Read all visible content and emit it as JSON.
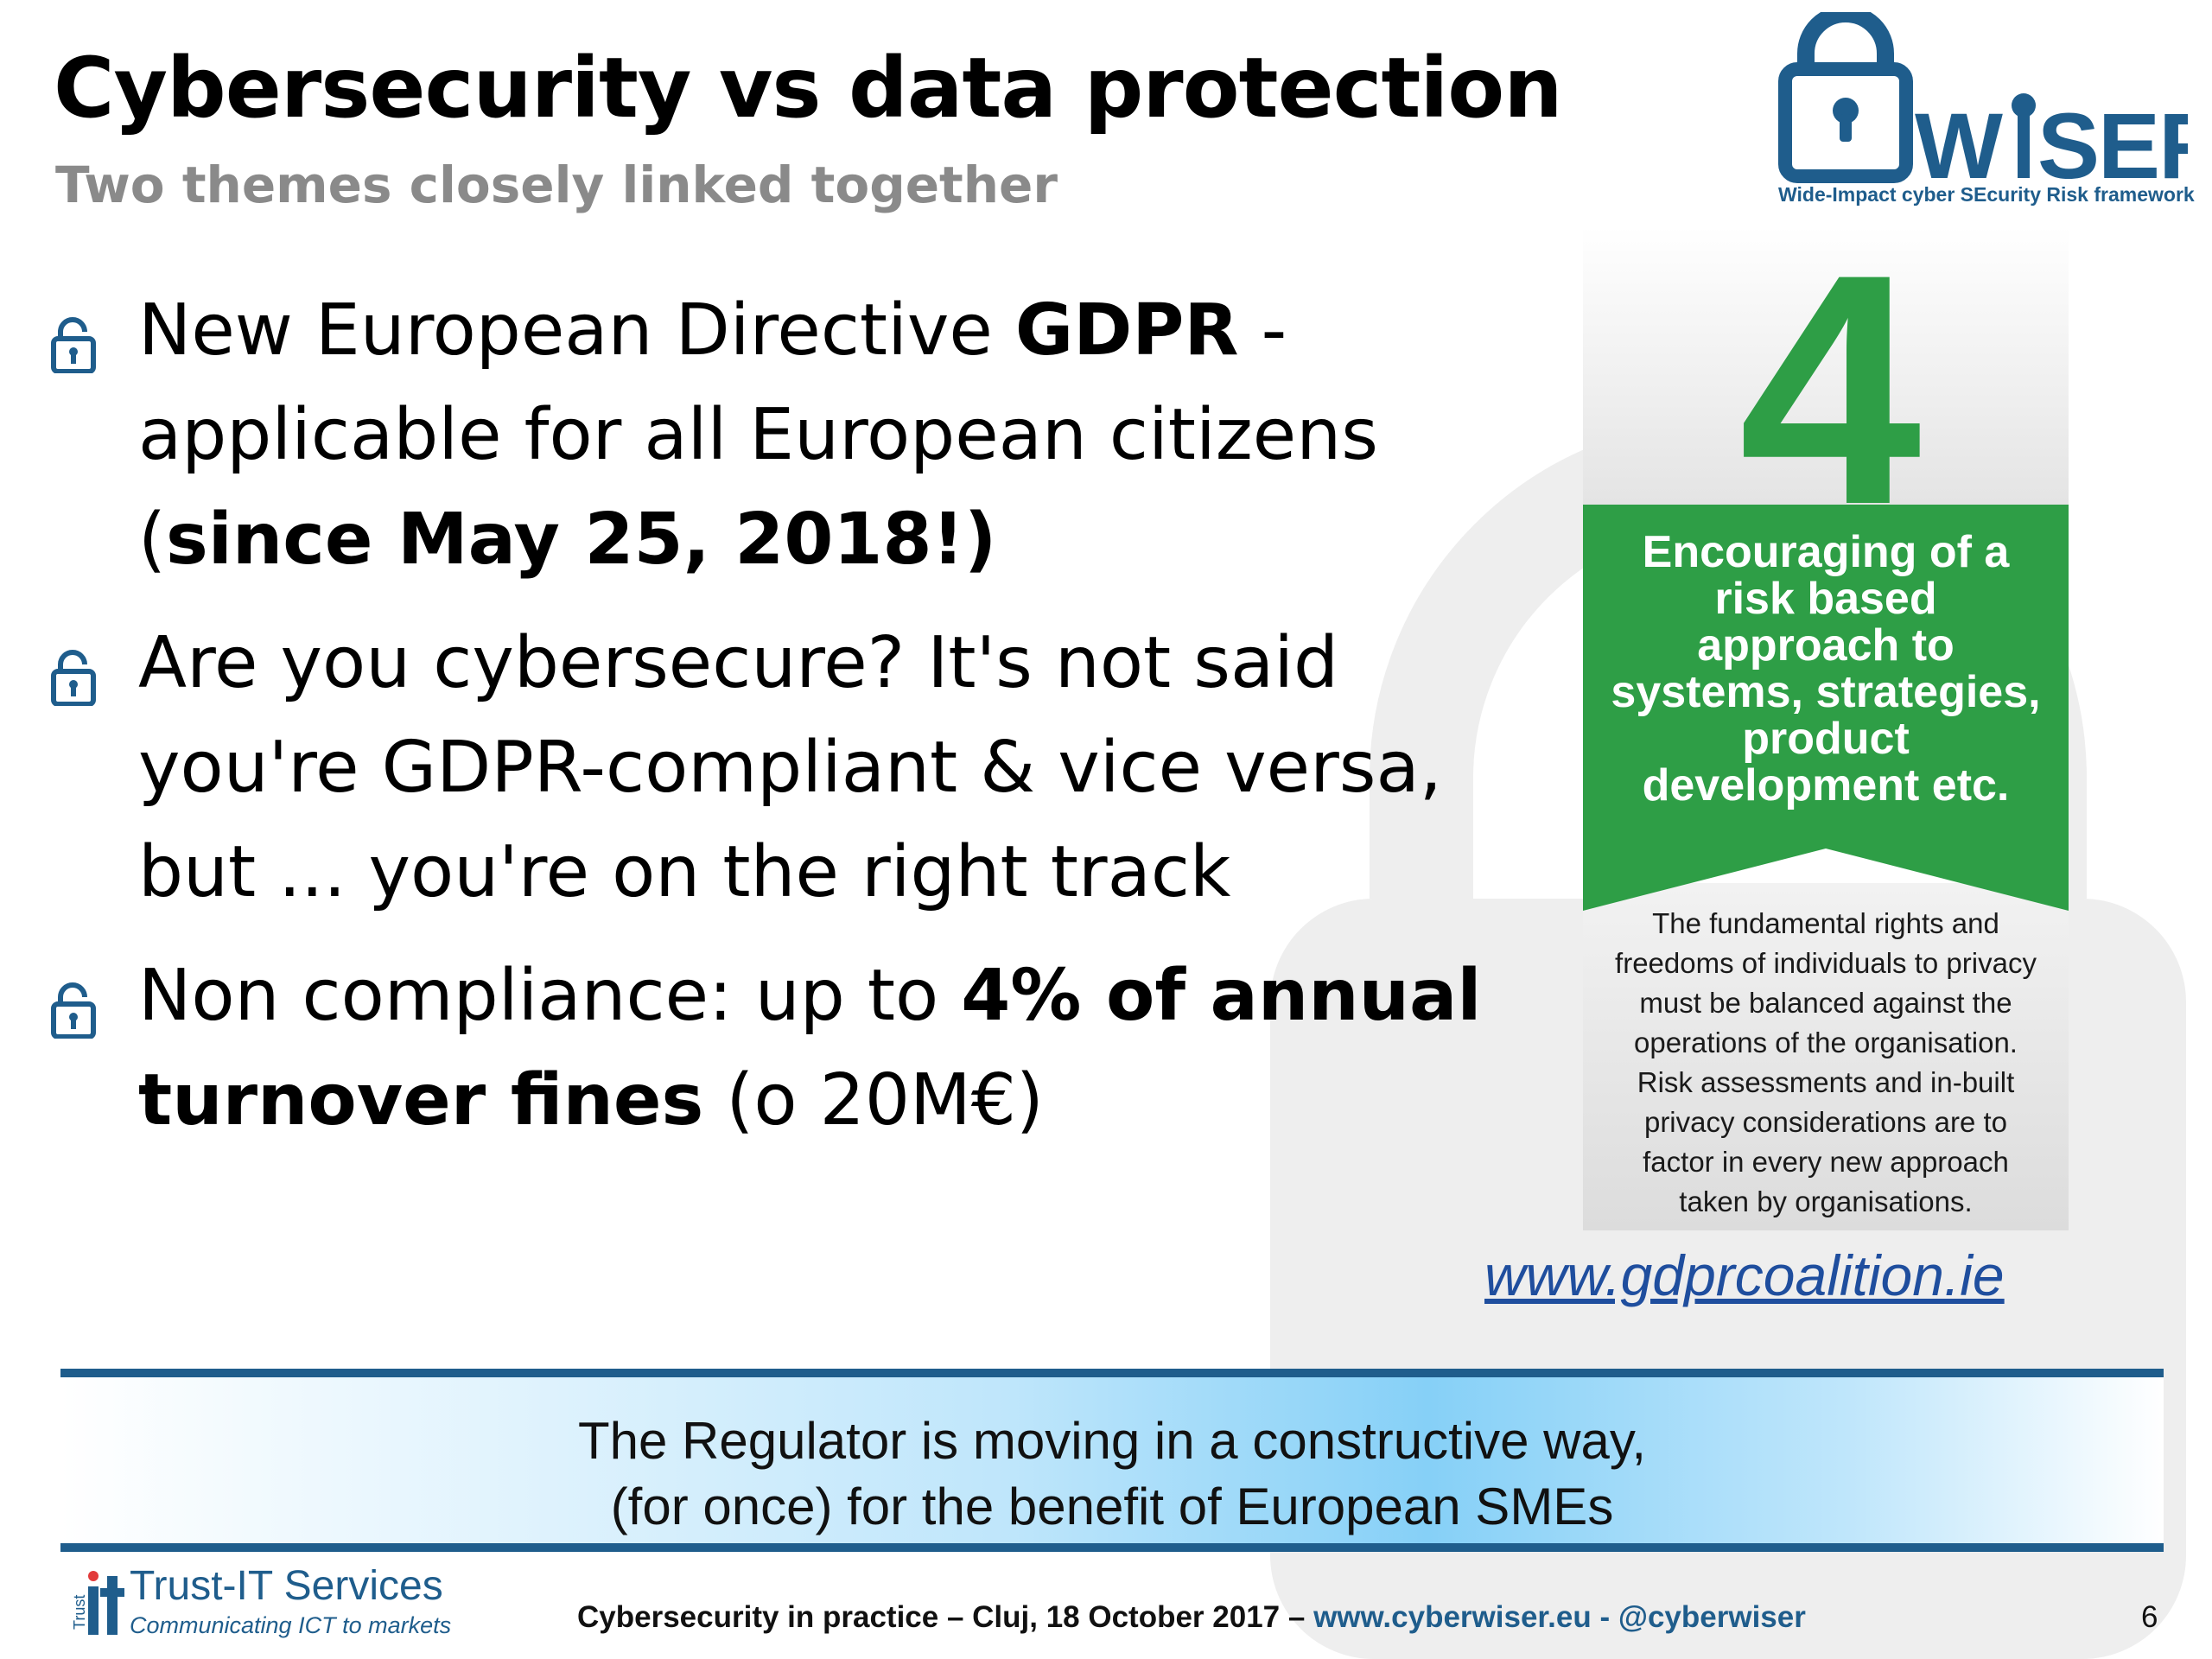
{
  "title": "Cybersecurity vs data protection",
  "subtitle": "Two themes closely linked together",
  "logo": {
    "wordmark": "WiSER",
    "tagline": "Wide-Impact cyber SEcurity Risk framework",
    "color": "#1f5d8c"
  },
  "bullets": [
    {
      "icon": "padlock-icon",
      "lines": [
        [
          {
            "text": "New European Directive "
          },
          {
            "text": "GDPR",
            "bold": true
          },
          {
            "text": " -"
          }
        ],
        [
          {
            "text": "applicable for all European citizens"
          }
        ],
        [
          {
            "text": "("
          },
          {
            "text": "since May 25, 2018!)",
            "bold": true
          }
        ]
      ]
    },
    {
      "icon": "padlock-icon",
      "lines": [
        [
          {
            "text": "Are you cybersecure? It's not said"
          }
        ],
        [
          {
            "text": "you're GDPR-compliant & vice versa,"
          }
        ],
        [
          {
            "text": "but ... you're on the right track"
          }
        ]
      ]
    },
    {
      "icon": "padlock-icon",
      "lines": [
        [
          {
            "text": "Non compliance: up to "
          },
          {
            "text": "4% of annual",
            "bold": true
          }
        ],
        [
          {
            "text": "turnover fines",
            "bold": true
          },
          {
            "text": " (o 20M€)"
          }
        ]
      ]
    }
  ],
  "infographic": {
    "number": "4",
    "heading_lines": [
      "Encouraging of a",
      "risk based",
      "approach to",
      "systems, strategies,",
      "product",
      "development etc."
    ],
    "body_lines": [
      "The fundamental rights and",
      "freedoms of individuals to privacy",
      "must be balanced against the",
      "operations of the organisation.",
      "Risk assessments and in-built",
      "privacy considerations are to",
      "factor in every new approach",
      "taken by organisations."
    ],
    "green": "#2e9e46"
  },
  "link": "www.gdprcoalition.ie",
  "banner": {
    "line1": "The Regulator is moving in a constructive way,",
    "line2": "(for once) for the benefit of European SMEs"
  },
  "footer": {
    "brand_name": "Trust-IT Services",
    "brand_tagline": "Communicating ICT to markets",
    "text": "Cybersecurity in practice – Cluj, 18 October 2017 –",
    "site": "www.cyberwiser.eu",
    "separator": "-",
    "handle": "@cyberwiser",
    "page": "6"
  }
}
